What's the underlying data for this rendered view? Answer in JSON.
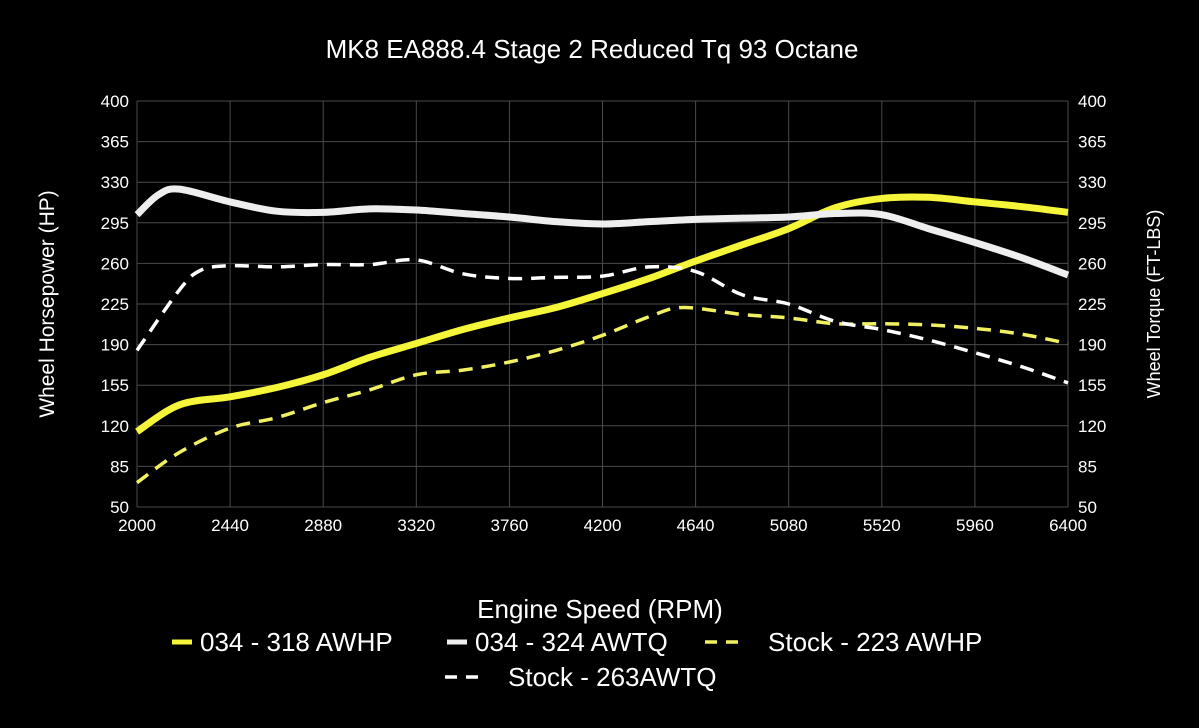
{
  "chart_data": {
    "type": "line",
    "title": "MK8 EA888.4 Stage 2 Reduced Tq 93 Octane",
    "xlabel": "Engine Speed (RPM)",
    "ylabel": "Wheel Horsepower (HP)",
    "y2label": "Wheel Torque (FT-LBS)",
    "xlim": [
      2000,
      6400
    ],
    "ylim": [
      50,
      400
    ],
    "y2lim": [
      50,
      400
    ],
    "xticks": [
      2000,
      2440,
      2880,
      3320,
      3760,
      4200,
      4640,
      5080,
      5520,
      5960,
      6400
    ],
    "yticks": [
      50,
      85,
      120,
      155,
      190,
      225,
      260,
      295,
      330,
      365,
      400
    ],
    "grid": true,
    "legend_placement": "bottom",
    "background": "#000000",
    "series": [
      {
        "name": "034 - 318 AWHP",
        "color": "#f5f53a",
        "dash": false,
        "x": [
          2000,
          2200,
          2440,
          2660,
          2880,
          3100,
          3320,
          3540,
          3760,
          3980,
          4200,
          4420,
          4640,
          4860,
          5080,
          5300,
          5520,
          5740,
          5960,
          6180,
          6400
        ],
        "y": [
          115,
          138,
          145,
          153,
          164,
          179,
          191,
          203,
          213,
          222,
          234,
          247,
          262,
          276,
          290,
          308,
          316,
          317,
          313,
          309,
          304
        ]
      },
      {
        "name": "034 - 324 AWTQ",
        "color": "#eeeeee",
        "dash": false,
        "x": [
          2000,
          2100,
          2200,
          2440,
          2660,
          2880,
          3100,
          3320,
          3540,
          3760,
          3980,
          4200,
          4420,
          4640,
          4860,
          5080,
          5300,
          5520,
          5740,
          5960,
          6180,
          6400
        ],
        "y": [
          302,
          319,
          324,
          313,
          305,
          304,
          307,
          306,
          303,
          300,
          296,
          294,
          296,
          298,
          299,
          300,
          303,
          302,
          290,
          278,
          265,
          250
        ]
      },
      {
        "name": "Stock - 223 AWHP",
        "color": "#f0f060",
        "dash": true,
        "x": [
          2000,
          2200,
          2440,
          2660,
          2880,
          3100,
          3320,
          3540,
          3760,
          3980,
          4200,
          4420,
          4580,
          4860,
          5080,
          5300,
          5520,
          5740,
          5960,
          6180,
          6400
        ],
        "y": [
          71,
          97,
          118,
          127,
          140,
          151,
          164,
          168,
          175,
          185,
          198,
          214,
          222,
          216,
          213,
          208,
          208,
          207,
          204,
          199,
          191
        ]
      },
      {
        "name": "Stock - 263AWTQ",
        "color": "#ffffff",
        "dash": true,
        "x": [
          2000,
          2200,
          2300,
          2440,
          2660,
          2880,
          3100,
          3320,
          3540,
          3760,
          3980,
          4200,
          4420,
          4640,
          4860,
          5080,
          5300,
          5520,
          5740,
          5960,
          6180,
          6400
        ],
        "y": [
          185,
          237,
          254,
          258,
          257,
          259,
          259,
          263,
          251,
          247,
          248,
          249,
          257,
          253,
          233,
          225,
          210,
          203,
          194,
          183,
          171,
          157
        ]
      }
    ]
  }
}
